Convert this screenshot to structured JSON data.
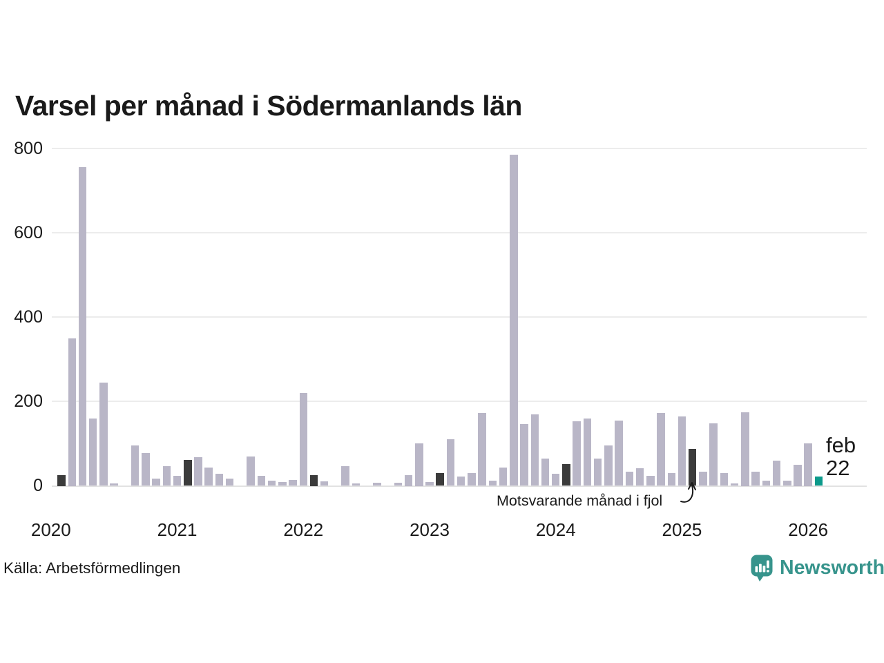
{
  "page": {
    "title": "Varsel per månad i Södermanlands län",
    "source": "Källa: Arbetsförmedlingen"
  },
  "annotation": {
    "label": "Motsvarande månad i fjol",
    "points_to": "feb 2025"
  },
  "last_point_label": {
    "line1": "feb",
    "line2": "22"
  },
  "brand": {
    "wordmark": "Newsworthy",
    "icon": "newsworthy-bubble-chart-icon"
  },
  "colors": {
    "bar_default": "#b9b6c7",
    "bar_same_month_last_year": "#3b3b3b",
    "bar_current": "#0c9a8b",
    "brand_teal": "#37948c",
    "gridline": "#ececec",
    "text": "#1a1a1a"
  },
  "chart_data": {
    "type": "bar",
    "title": "Varsel per månad i Södermanlands län",
    "xlabel": "",
    "ylabel": "",
    "ylim": [
      0,
      800
    ],
    "yticks": [
      0,
      200,
      400,
      600,
      800
    ],
    "grid": "horizontal",
    "legend_position": "none",
    "year_labels": [
      "2020",
      "2021",
      "2022",
      "2023",
      "2024",
      "2025",
      "2026"
    ],
    "highlight_note": "Motsvarande månad i fjol",
    "current_point": {
      "label": "feb 22",
      "month": "feb 2026",
      "value": 22
    },
    "months": [
      {
        "label": "jan 2020",
        "value": 0,
        "kind": "base"
      },
      {
        "label": "feb 2020",
        "value": 25,
        "kind": "fjol"
      },
      {
        "label": "mar 2020",
        "value": 350,
        "kind": "base"
      },
      {
        "label": "apr 2020",
        "value": 755,
        "kind": "base"
      },
      {
        "label": "maj 2020",
        "value": 160,
        "kind": "base"
      },
      {
        "label": "jun 2020",
        "value": 245,
        "kind": "base"
      },
      {
        "label": "jul 2020",
        "value": 5,
        "kind": "base"
      },
      {
        "label": "aug 2020",
        "value": 0,
        "kind": "base"
      },
      {
        "label": "sep 2020",
        "value": 95,
        "kind": "base"
      },
      {
        "label": "okt 2020",
        "value": 78,
        "kind": "base"
      },
      {
        "label": "nov 2020",
        "value": 17,
        "kind": "base"
      },
      {
        "label": "dec 2020",
        "value": 46,
        "kind": "base"
      },
      {
        "label": "jan 2021",
        "value": 23,
        "kind": "base"
      },
      {
        "label": "feb 2021",
        "value": 61,
        "kind": "fjol"
      },
      {
        "label": "mar 2021",
        "value": 68,
        "kind": "base"
      },
      {
        "label": "apr 2021",
        "value": 43,
        "kind": "base"
      },
      {
        "label": "maj 2021",
        "value": 28,
        "kind": "base"
      },
      {
        "label": "jun 2021",
        "value": 17,
        "kind": "base"
      },
      {
        "label": "jul 2021",
        "value": 0,
        "kind": "base"
      },
      {
        "label": "aug 2021",
        "value": 69,
        "kind": "base"
      },
      {
        "label": "sep 2021",
        "value": 23,
        "kind": "base"
      },
      {
        "label": "okt 2021",
        "value": 13,
        "kind": "base"
      },
      {
        "label": "nov 2021",
        "value": 9,
        "kind": "base"
      },
      {
        "label": "dec 2021",
        "value": 14,
        "kind": "base"
      },
      {
        "label": "jan 2022",
        "value": 220,
        "kind": "base"
      },
      {
        "label": "feb 2022",
        "value": 25,
        "kind": "fjol"
      },
      {
        "label": "mar 2022",
        "value": 10,
        "kind": "base"
      },
      {
        "label": "apr 2022",
        "value": 0,
        "kind": "base"
      },
      {
        "label": "maj 2022",
        "value": 47,
        "kind": "base"
      },
      {
        "label": "jun 2022",
        "value": 5,
        "kind": "base"
      },
      {
        "label": "jul 2022",
        "value": 0,
        "kind": "base"
      },
      {
        "label": "aug 2022",
        "value": 8,
        "kind": "base"
      },
      {
        "label": "sep 2022",
        "value": 0,
        "kind": "base"
      },
      {
        "label": "okt 2022",
        "value": 8,
        "kind": "base"
      },
      {
        "label": "nov 2022",
        "value": 25,
        "kind": "base"
      },
      {
        "label": "dec 2022",
        "value": 100,
        "kind": "base"
      },
      {
        "label": "jan 2023",
        "value": 9,
        "kind": "base"
      },
      {
        "label": "feb 2023",
        "value": 31,
        "kind": "fjol"
      },
      {
        "label": "mar 2023",
        "value": 110,
        "kind": "base"
      },
      {
        "label": "apr 2023",
        "value": 22,
        "kind": "base"
      },
      {
        "label": "maj 2023",
        "value": 31,
        "kind": "base"
      },
      {
        "label": "jun 2023",
        "value": 172,
        "kind": "base"
      },
      {
        "label": "jul 2023",
        "value": 12,
        "kind": "base"
      },
      {
        "label": "aug 2023",
        "value": 44,
        "kind": "base"
      },
      {
        "label": "sep 2023",
        "value": 785,
        "kind": "base"
      },
      {
        "label": "okt 2023",
        "value": 147,
        "kind": "base"
      },
      {
        "label": "nov 2023",
        "value": 170,
        "kind": "base"
      },
      {
        "label": "dec 2023",
        "value": 64,
        "kind": "base"
      },
      {
        "label": "jan 2024",
        "value": 28,
        "kind": "base"
      },
      {
        "label": "feb 2024",
        "value": 51,
        "kind": "fjol"
      },
      {
        "label": "mar 2024",
        "value": 153,
        "kind": "base"
      },
      {
        "label": "apr 2024",
        "value": 160,
        "kind": "base"
      },
      {
        "label": "maj 2024",
        "value": 65,
        "kind": "base"
      },
      {
        "label": "jun 2024",
        "value": 95,
        "kind": "base"
      },
      {
        "label": "jul 2024",
        "value": 155,
        "kind": "base"
      },
      {
        "label": "aug 2024",
        "value": 33,
        "kind": "base"
      },
      {
        "label": "sep 2024",
        "value": 42,
        "kind": "base"
      },
      {
        "label": "okt 2024",
        "value": 23,
        "kind": "base"
      },
      {
        "label": "nov 2024",
        "value": 172,
        "kind": "base"
      },
      {
        "label": "dec 2024",
        "value": 31,
        "kind": "base"
      },
      {
        "label": "jan 2025",
        "value": 164,
        "kind": "base"
      },
      {
        "label": "feb 2025",
        "value": 87,
        "kind": "fjol"
      },
      {
        "label": "mar 2025",
        "value": 33,
        "kind": "base"
      },
      {
        "label": "apr 2025",
        "value": 148,
        "kind": "base"
      },
      {
        "label": "maj 2025",
        "value": 31,
        "kind": "base"
      },
      {
        "label": "jun 2025",
        "value": 5,
        "kind": "base"
      },
      {
        "label": "jul 2025",
        "value": 175,
        "kind": "base"
      },
      {
        "label": "aug 2025",
        "value": 34,
        "kind": "base"
      },
      {
        "label": "sep 2025",
        "value": 12,
        "kind": "base"
      },
      {
        "label": "okt 2025",
        "value": 59,
        "kind": "base"
      },
      {
        "label": "nov 2025",
        "value": 12,
        "kind": "base"
      },
      {
        "label": "dec 2025",
        "value": 50,
        "kind": "base"
      },
      {
        "label": "jan 2026",
        "value": 100,
        "kind": "base"
      },
      {
        "label": "feb 2026",
        "value": 22,
        "kind": "current"
      }
    ]
  }
}
